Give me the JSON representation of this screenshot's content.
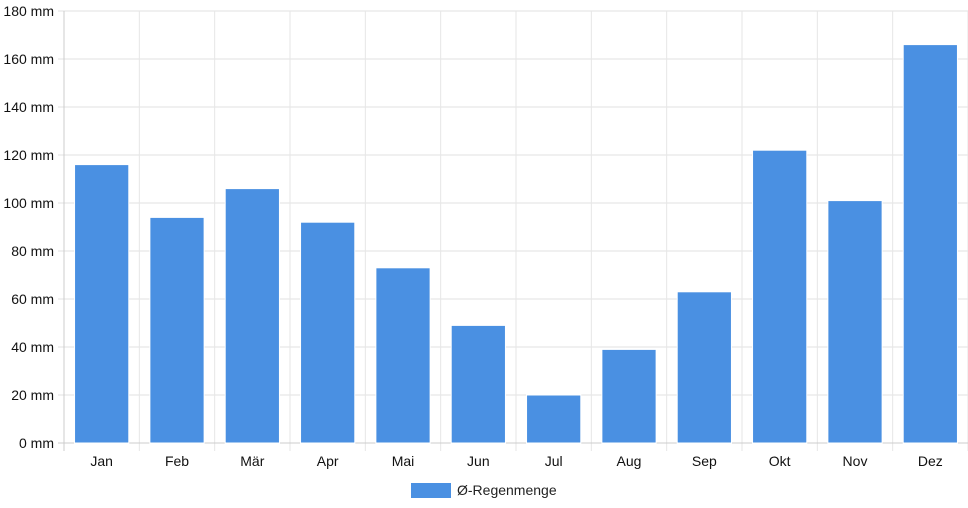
{
  "chart_data": {
    "type": "bar",
    "categories": [
      "Jan",
      "Feb",
      "Mär",
      "Apr",
      "Mai",
      "Jun",
      "Jul",
      "Aug",
      "Sep",
      "Okt",
      "Nov",
      "Dez"
    ],
    "series": [
      {
        "name": "Ø-Regenmenge",
        "values": [
          116,
          94,
          106,
          92,
          73,
          49,
          20,
          39,
          63,
          122,
          101,
          166
        ],
        "color": "#4a90e2"
      }
    ],
    "ylim": [
      0,
      180
    ],
    "yticks": [
      0,
      20,
      40,
      60,
      80,
      100,
      120,
      140,
      160,
      180
    ],
    "y_unit": "mm",
    "grid": true,
    "legend_position": "bottom"
  }
}
